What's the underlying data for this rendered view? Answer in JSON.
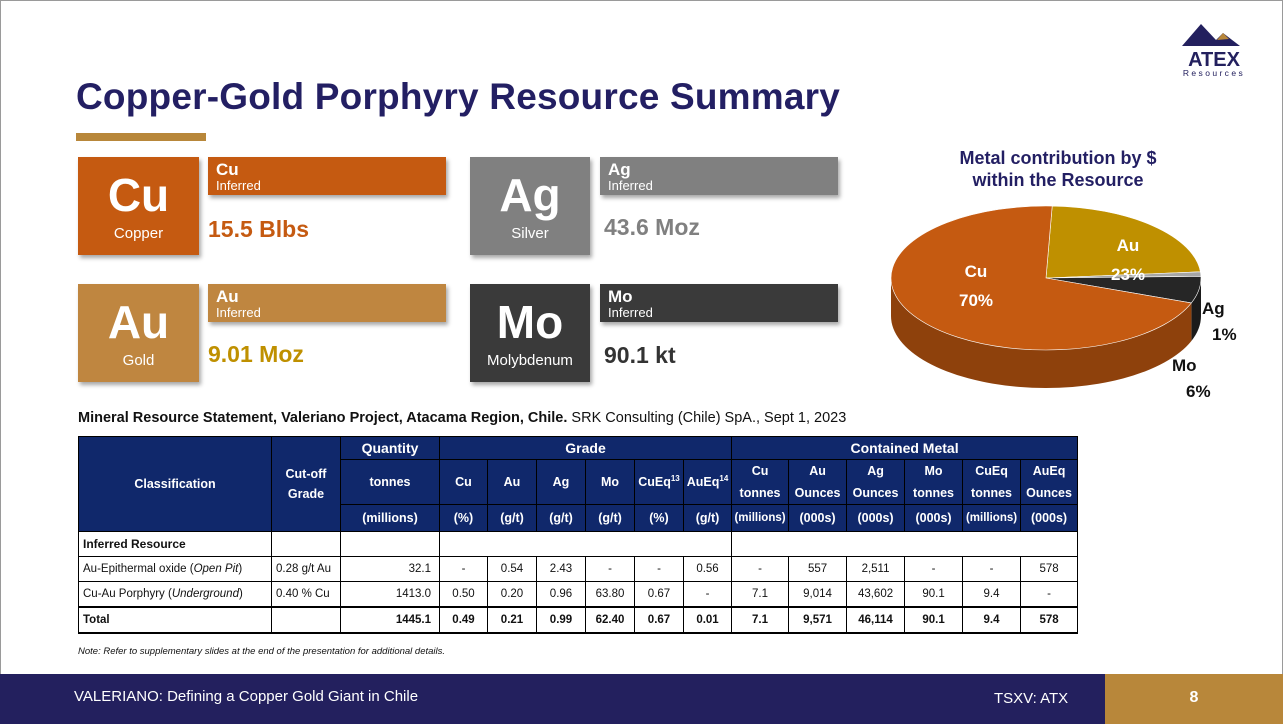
{
  "title": "Copper-Gold Porphyry Resource Summary",
  "logo": {
    "text": "ATEX",
    "subtext": "Resources"
  },
  "metals": {
    "cu": {
      "symbol": "Cu",
      "name": "Copper",
      "bar_title": "Cu",
      "bar_sub": "Inferred",
      "value": "15.5 Blbs",
      "color": "#c55a11"
    },
    "ag": {
      "symbol": "Ag",
      "name": "Silver",
      "bar_title": "Ag",
      "bar_sub": "Inferred",
      "value": "43.6 Moz",
      "color": "#808080"
    },
    "au": {
      "symbol": "Au",
      "name": "Gold",
      "bar_title": "Au",
      "bar_sub": "Inferred",
      "value": "9.01 Moz",
      "color": "#bf8640"
    },
    "mo": {
      "symbol": "Mo",
      "name": "Molybdenum",
      "bar_title": "Mo",
      "bar_sub": "Inferred",
      "value": "90.1 kt",
      "color": "#3a3a3a"
    }
  },
  "chart_data": {
    "type": "pie",
    "title": "Metal contribution by $ within the Resource",
    "title_line1": "Metal contribution by $",
    "title_line2": "within the Resource",
    "labels": [
      "Cu",
      "Au",
      "Ag",
      "Mo"
    ],
    "values": [
      70,
      23,
      1,
      6
    ],
    "value_labels": [
      "70%",
      "23%",
      "1%",
      "6%"
    ],
    "colors": [
      "#c55a11",
      "#bf9000",
      "#a6a6a6",
      "#262626"
    ]
  },
  "caption": {
    "bold": "Mineral Resource Statement, Valeriano Project, Atacama Region, Chile.",
    "normal": " SRK Consulting (Chile) SpA., Sept 1, 2023"
  },
  "table": {
    "h_classification": "Classification",
    "h_cutoff_1": "Cut-off",
    "h_cutoff_2": "Grade",
    "h_quantity": "Quantity",
    "h_grade": "Grade",
    "h_contained": "Contained Metal",
    "h_tonnes": "tonnes",
    "h_millions": "(millions)",
    "grade_cols": [
      {
        "name": "Cu",
        "sup": "",
        "unit": "(%)"
      },
      {
        "name": "Au",
        "sup": "",
        "unit": "(g/t)"
      },
      {
        "name": "Ag",
        "sup": "",
        "unit": "(g/t)"
      },
      {
        "name": "Mo",
        "sup": "",
        "unit": "(g/t)"
      },
      {
        "name": "CuEq",
        "sup": "13",
        "unit": "(%)"
      },
      {
        "name": "AuEq",
        "sup": "14",
        "unit": "(g/t)"
      }
    ],
    "metal_cols": [
      {
        "name": "Cu",
        "sub": "tonnes",
        "unit": "(millions)"
      },
      {
        "name": "Au",
        "sub": "Ounces",
        "unit": "(000s)"
      },
      {
        "name": "Ag",
        "sub": "Ounces",
        "unit": "(000s)"
      },
      {
        "name": "Mo",
        "sub": "tonnes",
        "unit": "(000s)"
      },
      {
        "name": "CuEq",
        "sub": "tonnes",
        "unit": "(millions)"
      },
      {
        "name": "AuEq",
        "sub": "Ounces",
        "unit": "(000s)"
      }
    ],
    "section_label": "Inferred Resource",
    "rows": [
      {
        "class_main": "Au-Epithermal oxide (",
        "class_italic": "Open Pit",
        "class_end": ")",
        "cutoff": "0.28 g/t Au",
        "tonnes": "32.1",
        "grades": [
          "-",
          "0.54",
          "2.43",
          "-",
          "-",
          "0.56"
        ],
        "metal": [
          "-",
          "557",
          "2,511",
          "-",
          "-",
          "578"
        ]
      },
      {
        "class_main": "Cu-Au Porphyry (",
        "class_italic": "Underground",
        "class_end": ")",
        "cutoff": "0.40 % Cu",
        "tonnes": "1413.0",
        "grades": [
          "0.50",
          "0.20",
          "0.96",
          "63.80",
          "0.67",
          "-"
        ],
        "metal": [
          "7.1",
          "9,014",
          "43,602",
          "90.1",
          "9.4",
          "-"
        ]
      }
    ],
    "total": {
      "label": "Total",
      "tonnes": "1445.1",
      "grades": [
        "0.49",
        "0.21",
        "0.99",
        "62.40",
        "0.67",
        "0.01"
      ],
      "metal": [
        "7.1",
        "9,571",
        "46,114",
        "90.1",
        "9.4",
        "578"
      ]
    }
  },
  "note": "Note: Refer to supplementary slides at the end of the presentation for additional details.",
  "footer": {
    "text": "VALERIANO: Defining a Copper Gold Giant in Chile",
    "ticker": "TSXV: ATX",
    "page": "8"
  }
}
